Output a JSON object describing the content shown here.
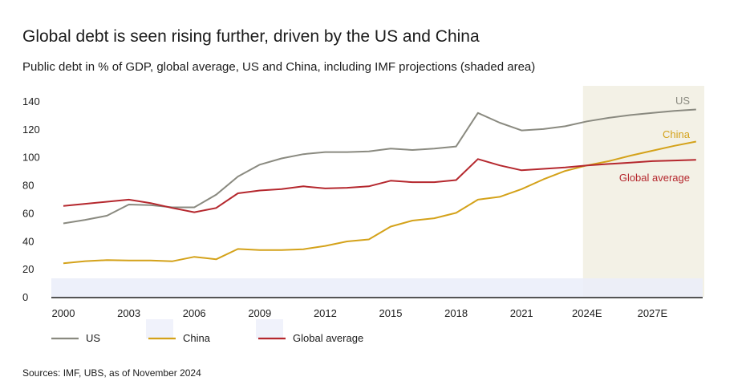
{
  "title": "Global debt is seen rising further, driven by the US and China",
  "subtitle": "Public debt in % of GDP, global average, US and China, including IMF projections (shaded area)",
  "source": "Sources: IMF, UBS, as of November 2024",
  "colors": {
    "us": "#8a8a80",
    "china": "#d4a21a",
    "global": "#b5282e",
    "projection_shade": "#f3f1e6",
    "bottom_band": "#eaedf9"
  },
  "chart_data": {
    "type": "line",
    "title": "Global debt is seen rising further, driven by the US and China",
    "xlabel": "",
    "ylabel": "",
    "ylim": [
      0,
      140
    ],
    "yticks": [
      0,
      20,
      40,
      60,
      80,
      100,
      120,
      140
    ],
    "x_tick_labels": [
      "2000",
      "2003",
      "2006",
      "2009",
      "2012",
      "2015",
      "2018",
      "2021",
      "2024E",
      "2027E"
    ],
    "projection_start_label": "2024E",
    "x": [
      2000,
      2001,
      2002,
      2003,
      2004,
      2005,
      2006,
      2007,
      2008,
      2009,
      2010,
      2011,
      2012,
      2013,
      2014,
      2015,
      2016,
      2017,
      2018,
      2019,
      2020,
      2021,
      2022,
      2023,
      2024,
      2025,
      2026,
      2027,
      2028,
      2029
    ],
    "series": [
      {
        "name": "US",
        "values": [
          52.5,
          55,
          58,
          66,
          65.5,
          64,
          64,
          73,
          86,
          94.5,
          99,
          102,
          103.5,
          103.5,
          104,
          106,
          105,
          106,
          107.5,
          131.5,
          124.5,
          119,
          120,
          122,
          125.5,
          128,
          130,
          131.5,
          133,
          134
        ],
        "label": "US",
        "legend": "US"
      },
      {
        "name": "China",
        "values": [
          24,
          25.5,
          26.2,
          26,
          26,
          25.4,
          28.6,
          26.8,
          34.2,
          33.4,
          33.4,
          34,
          36.4,
          39.6,
          41,
          50.2,
          54.5,
          56.2,
          60,
          69.5,
          71.5,
          77,
          84,
          90,
          94,
          97,
          101,
          104.5,
          108,
          111
        ],
        "label": "China",
        "legend": "China"
      },
      {
        "name": "Global average",
        "values": [
          65,
          66.5,
          68,
          69.5,
          67,
          63.5,
          60.5,
          63.5,
          74,
          76,
          77,
          79,
          77.5,
          78,
          79,
          83,
          82,
          82,
          83.5,
          98.5,
          94,
          90.5,
          91.5,
          92.5,
          94,
          95,
          96,
          97,
          97.5,
          98
        ],
        "label": "Global average",
        "legend": "Global average"
      }
    ],
    "grid": false,
    "legend_position": "bottom-left"
  }
}
